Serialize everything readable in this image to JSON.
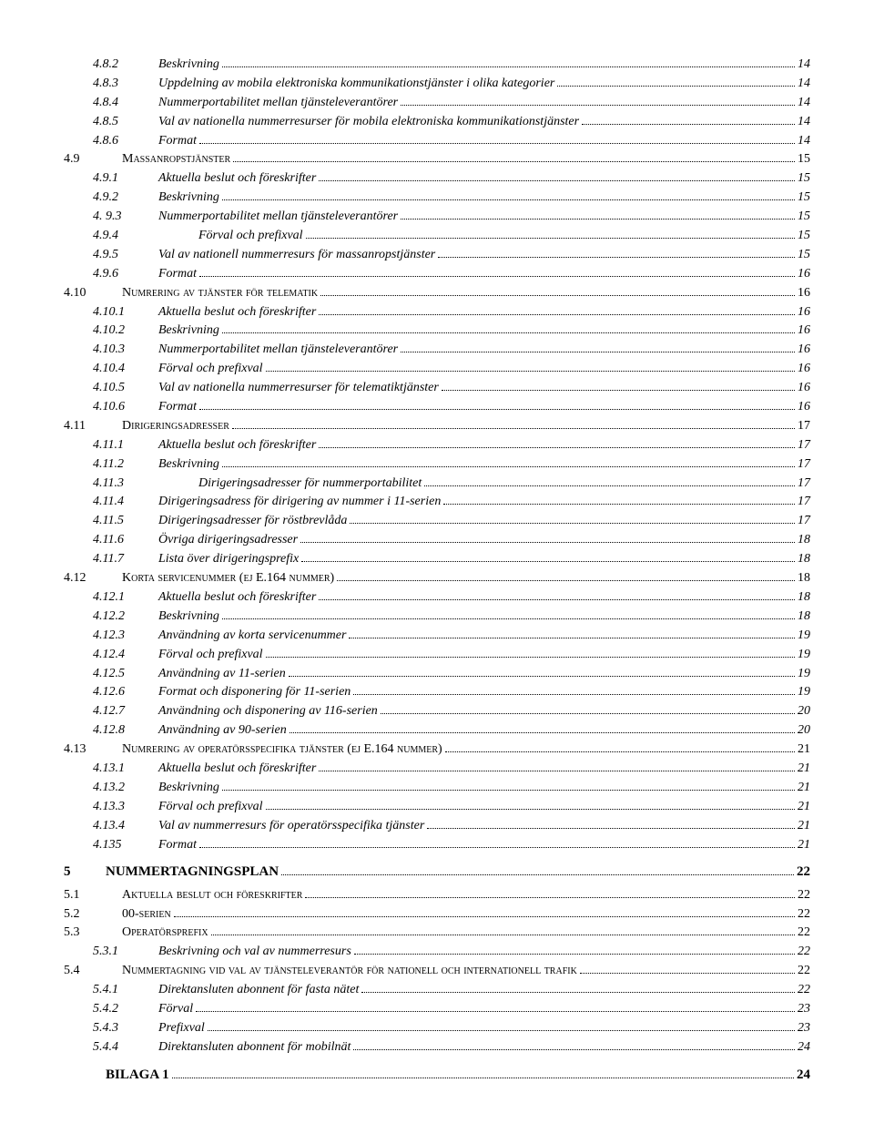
{
  "toc": [
    {
      "level": "l3",
      "num": "4.8.2",
      "title": "Beskrivning",
      "page": "14"
    },
    {
      "level": "l3",
      "num": "4.8.3",
      "title": "Uppdelning av mobila elektroniska kommunikationstjänster i olika kategorier",
      "page": "14"
    },
    {
      "level": "l3",
      "num": "4.8.4",
      "title": "Nummerportabilitet mellan tjänsteleverantörer",
      "page": "14"
    },
    {
      "level": "l3",
      "num": "4.8.5",
      "title": "Val av nationella nummerresurser för mobila elektroniska kommunikationstjänster",
      "page": "14"
    },
    {
      "level": "l3",
      "num": "4.8.6",
      "title": "Format",
      "page": "14"
    },
    {
      "level": "l2sc",
      "num": "4.9",
      "title": "Massanropstjänster",
      "page": "15"
    },
    {
      "level": "l3",
      "num": "4.9.1",
      "title": "Aktuella beslut och föreskrifter",
      "page": "15"
    },
    {
      "level": "l3",
      "num": "4.9.2",
      "title": "Beskrivning",
      "page": "15"
    },
    {
      "level": "l3",
      "num": "4. 9.3",
      "title": "Nummerportabilitet mellan tjänsteleverantörer",
      "page": "15"
    },
    {
      "level": "l3",
      "num": "4.9.4",
      "title": "Förval och prefixval",
      "page": "15",
      "pad": true
    },
    {
      "level": "l3",
      "num": "4.9.5",
      "title": "Val av nationell nummerresurs för massanropstjänster",
      "page": "15"
    },
    {
      "level": "l3",
      "num": "4.9.6",
      "title": "Format",
      "page": "16"
    },
    {
      "level": "l2sc",
      "num": "4.10",
      "title": "Numrering av tjänster för telematik",
      "page": "16"
    },
    {
      "level": "l3",
      "num": "4.10.1",
      "title": "Aktuella beslut och föreskrifter",
      "page": "16"
    },
    {
      "level": "l3",
      "num": "4.10.2",
      "title": "Beskrivning",
      "page": "16"
    },
    {
      "level": "l3",
      "num": "4.10.3",
      "title": "Nummerportabilitet mellan tjänsteleverantörer",
      "page": "16"
    },
    {
      "level": "l3",
      "num": "4.10.4",
      "title": "Förval och prefixval",
      "page": "16"
    },
    {
      "level": "l3",
      "num": "4.10.5",
      "title": "Val av nationella nummerresurser för telematiktjänster",
      "page": "16"
    },
    {
      "level": "l3",
      "num": "4.10.6",
      "title": "Format",
      "page": "16"
    },
    {
      "level": "l2sc",
      "num": "4.11",
      "title": "Dirigeringsadresser",
      "page": "17"
    },
    {
      "level": "l3",
      "num": "4.11.1",
      "title": "Aktuella beslut och föreskrifter",
      "page": "17"
    },
    {
      "level": "l3",
      "num": "4.11.2",
      "title": "Beskrivning",
      "page": "17"
    },
    {
      "level": "l3",
      "num": "4.11.3",
      "title": "Dirigeringsadresser för nummerportabilitet",
      "page": "17",
      "pad": true
    },
    {
      "level": "l3",
      "num": "4.11.4",
      "title": "Dirigeringsadress för dirigering av nummer i 11-serien",
      "page": "17"
    },
    {
      "level": "l3",
      "num": "4.11.5",
      "title": "Dirigeringsadresser för röstbrevlåda",
      "page": "17"
    },
    {
      "level": "l3",
      "num": "4.11.6",
      "title": "Övriga dirigeringsadresser",
      "page": "18"
    },
    {
      "level": "l3",
      "num": "4.11.7",
      "title": "Lista över dirigeringsprefix",
      "page": "18"
    },
    {
      "level": "l2sc",
      "num": "4.12",
      "title": "Korta servicenummer (ej E.164 nummer)",
      "page": "18"
    },
    {
      "level": "l3",
      "num": "4.12.1",
      "title": "Aktuella beslut och föreskrifter",
      "page": "18"
    },
    {
      "level": "l3",
      "num": "4.12.2",
      "title": "Beskrivning",
      "page": "18"
    },
    {
      "level": "l3",
      "num": "4.12.3",
      "title": "Användning av korta servicenummer",
      "page": "19"
    },
    {
      "level": "l3",
      "num": "4.12.4",
      "title": "Förval och prefixval",
      "page": "19"
    },
    {
      "level": "l3",
      "num": "4.12.5",
      "title": "Användning av 11-serien",
      "page": "19"
    },
    {
      "level": "l3",
      "num": "4.12.6",
      "title": "Format och disponering för 11-serien",
      "page": "19"
    },
    {
      "level": "l3",
      "num": "4.12.7",
      "title": "Användning och disponering av 116-serien",
      "page": "20"
    },
    {
      "level": "l3",
      "num": "4.12.8",
      "title": "Användning av 90-serien",
      "page": "20"
    },
    {
      "level": "l2sc",
      "num": "4.13",
      "title": "Numrering av operatörsspecifika tjänster (ej E.164 nummer)",
      "page": "21"
    },
    {
      "level": "l3",
      "num": "4.13.1",
      "title": "Aktuella beslut och föreskrifter",
      "page": "21"
    },
    {
      "level": "l3",
      "num": "4.13.2",
      "title": "Beskrivning",
      "page": "21"
    },
    {
      "level": "l3",
      "num": "4.13.3",
      "title": "Förval och prefixval",
      "page": "21"
    },
    {
      "level": "l3",
      "num": "4.13.4",
      "title": "Val av nummerresurs för operatörsspecifika tjänster",
      "page": "21"
    },
    {
      "level": "l3",
      "num": "4.135",
      "title": "Format",
      "page": "21"
    },
    {
      "level": "ch",
      "num": "5",
      "title": "NUMMERTAGNINGSPLAN",
      "page": "22"
    },
    {
      "level": "l2sc",
      "num": "5.1",
      "title": "Aktuella beslut och föreskrifter",
      "page": "22"
    },
    {
      "level": "l2sc",
      "num": "5.2",
      "title": "00-serien",
      "page": "22"
    },
    {
      "level": "l2sc",
      "num": "5.3",
      "title": "Operatörsprefix",
      "page": "22"
    },
    {
      "level": "l3",
      "num": "5.3.1",
      "title": "Beskrivning och val av nummerresurs",
      "page": "22"
    },
    {
      "level": "l2sc",
      "num": "5.4",
      "title": "Nummertagning vid val av tjänsteleverantör för nationell och internationell trafik",
      "page": "22"
    },
    {
      "level": "l3",
      "num": "5.4.1",
      "title": "Direktansluten abonnent för fasta nätet",
      "page": "22"
    },
    {
      "level": "l3",
      "num": "5.4.2",
      "title": "Förval",
      "page": "23"
    },
    {
      "level": "l3",
      "num": "5.4.3",
      "title": "Prefixval",
      "page": "23"
    },
    {
      "level": "l3",
      "num": "5.4.4",
      "title": "Direktansluten abonnent för mobilnät",
      "page": "24"
    },
    {
      "level": "ch",
      "num": "",
      "title": "BILAGA 1",
      "page": "24"
    }
  ]
}
